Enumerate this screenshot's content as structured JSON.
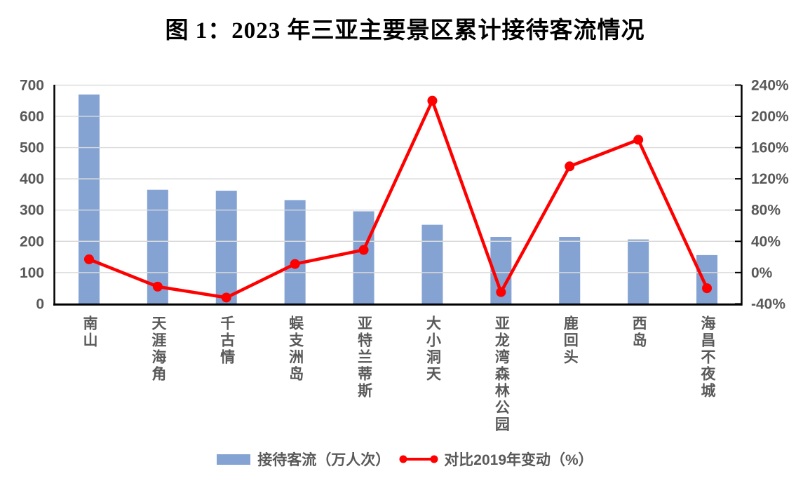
{
  "title": "图 1：2023 年三亚主要景区累计接待客流情况",
  "chart_data": {
    "type": "bar+line combo",
    "title": "图 1：2023 年三亚主要景区累计接待客流情况",
    "categories": [
      "南山",
      "天涯海角",
      "千古情",
      "蜈支洲岛",
      "亚特兰蒂斯",
      "大小洞天",
      "亚龙湾森林公园",
      "鹿回头",
      "西岛",
      "海昌不夜城"
    ],
    "series": [
      {
        "name": "接待客流（万人次）",
        "type": "bar",
        "axis": "left",
        "color": "#84A3D3",
        "values": [
          670,
          365,
          362,
          332,
          296,
          253,
          214,
          214,
          206,
          156
        ]
      },
      {
        "name": "对比2019年变动（%）",
        "type": "line",
        "axis": "right",
        "color": "#FE0000",
        "values": [
          17,
          -18,
          -32,
          11,
          29,
          220,
          -25,
          136,
          170,
          -20
        ]
      }
    ],
    "left_axis": {
      "min": 0,
      "max": 700,
      "step": 100,
      "ticks": [
        "0",
        "100",
        "200",
        "300",
        "400",
        "500",
        "600",
        "700"
      ]
    },
    "right_axis": {
      "min": -40,
      "max": 240,
      "step": 40,
      "ticks": [
        "-40%",
        "0%",
        "40%",
        "80%",
        "120%",
        "160%",
        "200%",
        "240%"
      ]
    },
    "grid": true,
    "legend_position": "bottom",
    "colors": {
      "grid": "#DADADA",
      "axis": "#000000",
      "tick_text": "#595959"
    }
  },
  "legend": {
    "bar_label": "接待客流（万人次）",
    "line_label": "对比2019年变动（%）"
  }
}
